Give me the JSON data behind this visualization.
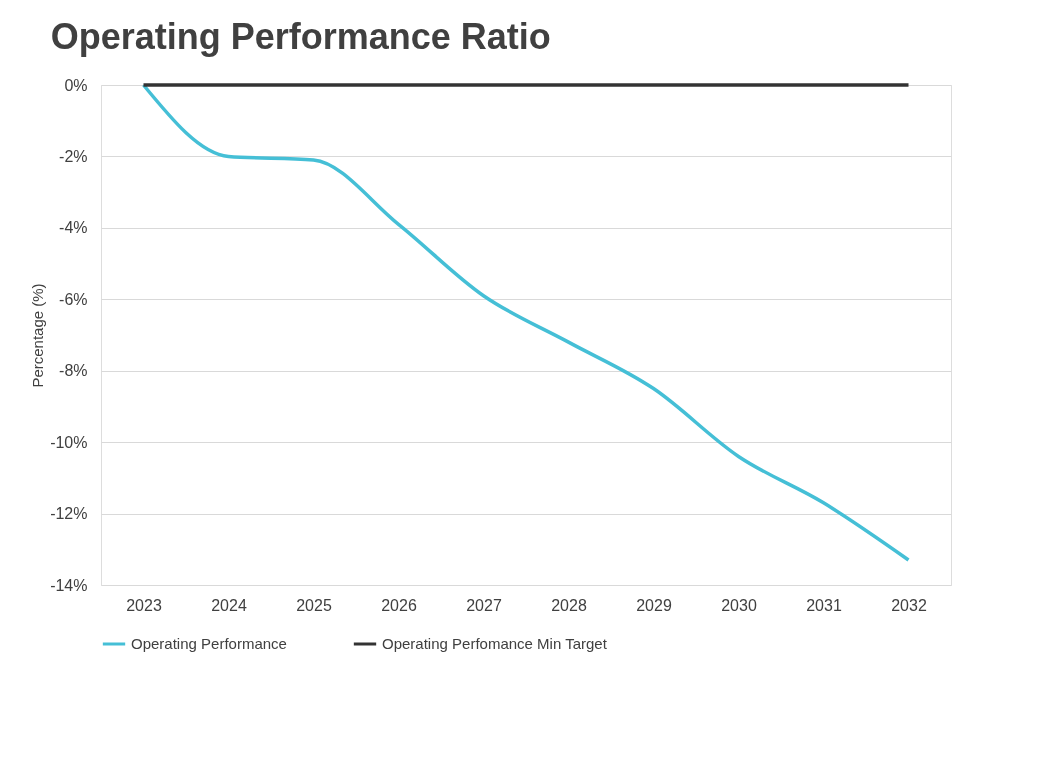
{
  "chart_data": {
    "type": "line",
    "title": "Operating Performance Ratio",
    "ylabel": "Percentage (%)",
    "categories": [
      "2023",
      "2024",
      "2025",
      "2026",
      "2027",
      "2028",
      "2029",
      "2030",
      "2031",
      "2032"
    ],
    "series": [
      {
        "name": "Operating Performance",
        "color": "#45bfd6",
        "values": [
          0,
          -2.0,
          -2.1,
          -3.9,
          -5.9,
          -7.2,
          -8.5,
          -10.4,
          -11.7,
          -13.3
        ]
      },
      {
        "name": "Operating Perfomance Min Target",
        "color": "#333333",
        "values": [
          0,
          0,
          0,
          0,
          0,
          0,
          0,
          0,
          0,
          0
        ]
      }
    ],
    "ylim": [
      -14,
      0
    ],
    "yticks": [
      {
        "value": 0,
        "label": "0%"
      },
      {
        "value": -2,
        "label": "-2%"
      },
      {
        "value": -4,
        "label": "-4%"
      },
      {
        "value": -6,
        "label": "-6%"
      },
      {
        "value": -8,
        "label": "-8%"
      },
      {
        "value": -10,
        "label": "-10%"
      },
      {
        "value": -12,
        "label": "-12%"
      },
      {
        "value": -14,
        "label": "-14%"
      }
    ],
    "grid": "y",
    "legend": "bottom",
    "line_style": "solid",
    "marker": "none"
  }
}
